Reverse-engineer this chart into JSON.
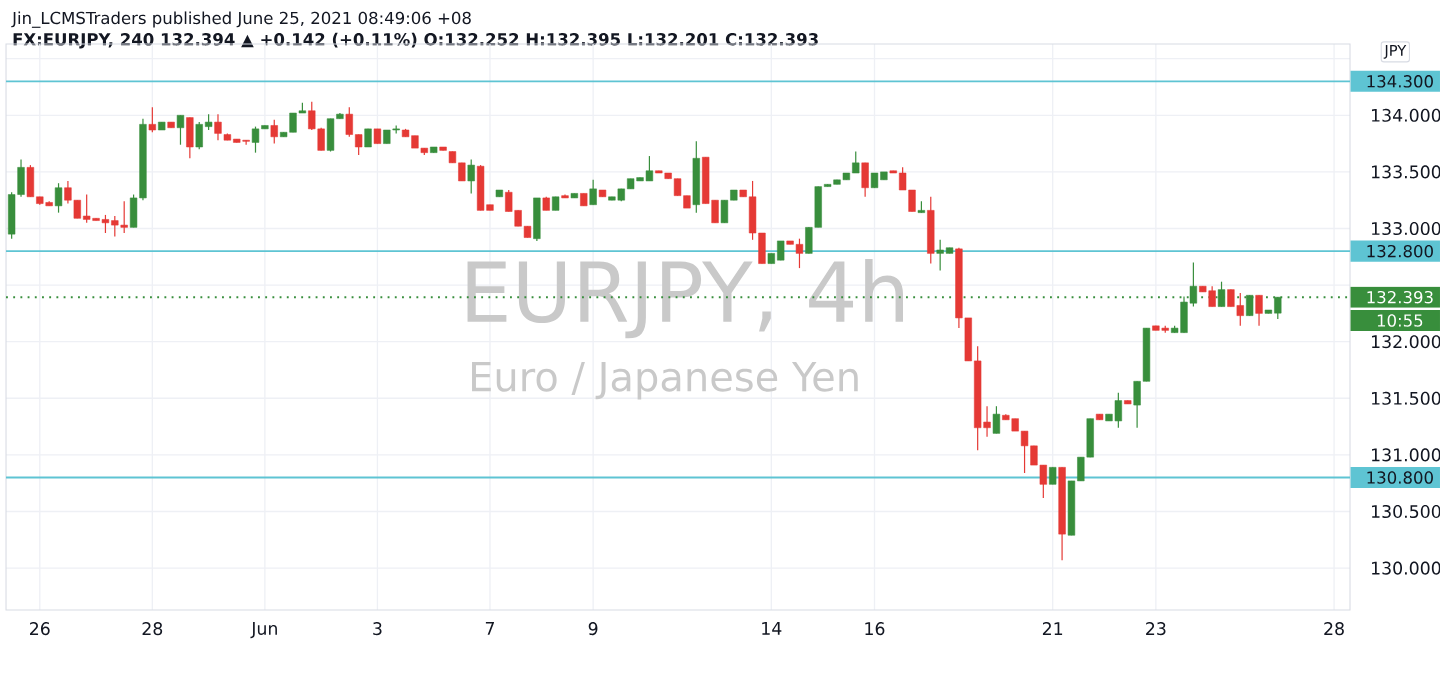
{
  "chart_data": {
    "type": "candlestick",
    "title": "EURJPY, 4h",
    "subtitle": "Euro / Japanese Yen",
    "annotations": [
      "Jin_LCMSTraders published June 25, 2021 08:49:06 +08",
      "FX:EURJPY, 240 132.394 ▲ +0.142 (+0.11%) O:132.252 H:132.395 L:132.201 C:132.393",
      "JPY",
      "10:55"
    ],
    "categories": [
      null,
      null,
      null,
      "26",
      null,
      null,
      null,
      null,
      null,
      null,
      null,
      null,
      null,
      null,
      null,
      "28",
      null,
      null,
      null,
      null,
      null,
      null,
      null,
      null,
      null,
      null,
      null,
      "Jun",
      null,
      null,
      null,
      null,
      null,
      null,
      null,
      null,
      null,
      null,
      null,
      "3",
      null,
      null,
      null,
      null,
      null,
      null,
      null,
      null,
      null,
      null,
      null,
      "7",
      null,
      null,
      null,
      null,
      null,
      null,
      null,
      null,
      null,
      null,
      "9",
      null,
      null,
      null,
      null,
      null,
      null,
      null,
      null,
      null,
      null,
      null,
      null,
      null,
      null,
      null,
      null,
      null,
      null,
      "14",
      null,
      null,
      null,
      null,
      null,
      null,
      null,
      null,
      null,
      null,
      "16",
      null,
      null,
      null,
      null,
      null,
      null,
      null,
      null,
      null,
      null,
      null,
      null,
      null,
      null,
      null,
      null,
      null,
      null,
      "21",
      null,
      null,
      null,
      null,
      null,
      null,
      null,
      null,
      null,
      null,
      "23",
      null,
      null,
      null,
      null,
      null,
      null,
      null,
      null,
      null,
      null,
      null,
      null,
      null,
      null,
      null,
      null,
      null,
      null,
      "28"
    ],
    "ohlc": [
      [
        132.95,
        133.32,
        132.91,
        133.3
      ],
      [
        133.3,
        133.61,
        133.28,
        133.54
      ],
      [
        133.54,
        133.56,
        133.28,
        133.28
      ],
      [
        133.28,
        133.28,
        133.21,
        133.22
      ],
      [
        133.23,
        133.24,
        133.2,
        133.2
      ],
      [
        133.2,
        133.4,
        133.14,
        133.36
      ],
      [
        133.36,
        133.42,
        133.22,
        133.25
      ],
      [
        133.25,
        133.25,
        133.09,
        133.09
      ],
      [
        133.11,
        133.3,
        133.05,
        133.08
      ],
      [
        133.09,
        133.09,
        133.07,
        133.07
      ],
      [
        133.08,
        133.12,
        132.96,
        133.05
      ],
      [
        133.07,
        133.11,
        132.93,
        133.03
      ],
      [
        133.03,
        133.24,
        132.96,
        133.01
      ],
      [
        133.01,
        133.3,
        133.01,
        133.27
      ],
      [
        133.27,
        133.97,
        133.25,
        133.92
      ],
      [
        133.92,
        134.07,
        133.85,
        133.87
      ],
      [
        133.87,
        133.94,
        133.87,
        133.94
      ],
      [
        133.94,
        133.94,
        133.89,
        133.89
      ],
      [
        133.89,
        134.0,
        133.74,
        134.0
      ],
      [
        133.98,
        133.98,
        133.62,
        133.72
      ],
      [
        133.72,
        133.94,
        133.7,
        133.92
      ],
      [
        133.9,
        134.01,
        133.87,
        133.94
      ],
      [
        133.94,
        134.01,
        133.78,
        133.84
      ],
      [
        133.83,
        133.84,
        133.78,
        133.78
      ],
      [
        133.79,
        133.79,
        133.76,
        133.76
      ],
      [
        133.78,
        133.78,
        133.74,
        133.77
      ],
      [
        133.76,
        133.9,
        133.67,
        133.88
      ],
      [
        133.88,
        133.91,
        133.88,
        133.91
      ],
      [
        133.91,
        133.96,
        133.75,
        133.81
      ],
      [
        133.81,
        133.85,
        133.81,
        133.85
      ],
      [
        133.85,
        134.02,
        133.85,
        134.02
      ],
      [
        134.02,
        134.11,
        134.02,
        134.04
      ],
      [
        134.04,
        134.12,
        133.87,
        133.88
      ],
      [
        133.88,
        133.89,
        133.69,
        133.69
      ],
      [
        133.69,
        133.97,
        133.68,
        133.97
      ],
      [
        133.97,
        134.02,
        133.97,
        134.01
      ],
      [
        134.01,
        134.07,
        133.81,
        133.83
      ],
      [
        133.83,
        133.83,
        133.65,
        133.72
      ],
      [
        133.72,
        133.88,
        133.72,
        133.88
      ],
      [
        133.88,
        133.88,
        133.75,
        133.75
      ],
      [
        133.75,
        133.87,
        133.75,
        133.87
      ],
      [
        133.87,
        133.91,
        133.84,
        133.88
      ],
      [
        133.87,
        133.88,
        133.81,
        133.81
      ],
      [
        133.82,
        133.82,
        133.71,
        133.71
      ],
      [
        133.71,
        133.71,
        133.65,
        133.67
      ],
      [
        133.67,
        133.72,
        133.67,
        133.72
      ],
      [
        133.72,
        133.72,
        133.69,
        133.69
      ],
      [
        133.68,
        133.68,
        133.58,
        133.58
      ],
      [
        133.58,
        133.58,
        133.42,
        133.42
      ],
      [
        133.42,
        133.61,
        133.31,
        133.56
      ],
      [
        133.55,
        133.56,
        133.16,
        133.16
      ],
      [
        133.21,
        133.21,
        133.16,
        133.16
      ],
      [
        133.28,
        133.34,
        133.28,
        133.34
      ],
      [
        133.32,
        133.34,
        133.15,
        133.15
      ],
      [
        133.16,
        133.16,
        133.02,
        133.02
      ],
      [
        133.02,
        133.02,
        132.92,
        132.92
      ],
      [
        132.91,
        133.27,
        132.89,
        133.27
      ],
      [
        133.27,
        133.28,
        133.16,
        133.16
      ],
      [
        133.16,
        133.28,
        133.16,
        133.28
      ],
      [
        133.29,
        133.3,
        133.27,
        133.27
      ],
      [
        133.27,
        133.31,
        133.27,
        133.31
      ],
      [
        133.31,
        133.31,
        133.2,
        133.2
      ],
      [
        133.21,
        133.43,
        133.21,
        133.35
      ],
      [
        133.34,
        133.34,
        133.28,
        133.28
      ],
      [
        133.25,
        133.28,
        133.25,
        133.28
      ],
      [
        133.25,
        133.35,
        133.24,
        133.35
      ],
      [
        133.35,
        133.44,
        133.35,
        133.44
      ],
      [
        133.42,
        133.45,
        133.42,
        133.45
      ],
      [
        133.42,
        133.64,
        133.42,
        133.51
      ],
      [
        133.51,
        133.51,
        133.49,
        133.49
      ],
      [
        133.49,
        133.49,
        133.44,
        133.44
      ],
      [
        133.44,
        133.44,
        133.29,
        133.29
      ],
      [
        133.29,
        133.29,
        133.18,
        133.18
      ],
      [
        133.21,
        133.77,
        133.14,
        133.62
      ],
      [
        133.63,
        133.63,
        133.22,
        133.22
      ],
      [
        133.25,
        133.25,
        133.05,
        133.05
      ],
      [
        133.05,
        133.25,
        133.05,
        133.25
      ],
      [
        133.25,
        133.34,
        133.25,
        133.34
      ],
      [
        133.34,
        133.34,
        133.28,
        133.28
      ],
      [
        133.28,
        133.42,
        132.9,
        132.96
      ],
      [
        132.96,
        132.96,
        132.69,
        132.69
      ],
      [
        132.69,
        132.78,
        132.69,
        132.78
      ],
      [
        132.72,
        132.89,
        132.72,
        132.89
      ],
      [
        132.89,
        132.89,
        132.86,
        132.86
      ],
      [
        132.86,
        132.91,
        132.65,
        132.78
      ],
      [
        132.78,
        133.01,
        132.78,
        133.01
      ],
      [
        133.01,
        133.37,
        133.01,
        133.37
      ],
      [
        133.37,
        133.39,
        133.37,
        133.39
      ],
      [
        133.39,
        133.43,
        133.39,
        133.43
      ],
      [
        133.43,
        133.49,
        133.43,
        133.49
      ],
      [
        133.49,
        133.68,
        133.49,
        133.58
      ],
      [
        133.58,
        133.58,
        133.28,
        133.36
      ],
      [
        133.36,
        133.49,
        133.36,
        133.49
      ],
      [
        133.43,
        133.5,
        133.43,
        133.5
      ],
      [
        133.51,
        133.51,
        133.49,
        133.49
      ],
      [
        133.49,
        133.54,
        133.34,
        133.34
      ],
      [
        133.34,
        133.34,
        133.15,
        133.15
      ],
      [
        133.14,
        133.24,
        133.14,
        133.16
      ],
      [
        133.16,
        133.28,
        132.69,
        132.78
      ],
      [
        132.78,
        132.9,
        132.63,
        132.81
      ],
      [
        132.78,
        132.83,
        132.78,
        132.83
      ],
      [
        132.82,
        132.83,
        132.12,
        132.21
      ],
      [
        132.21,
        132.21,
        131.83,
        131.83
      ],
      [
        131.83,
        131.96,
        131.04,
        131.24
      ],
      [
        131.29,
        131.43,
        131.16,
        131.24
      ],
      [
        131.19,
        131.43,
        131.19,
        131.36
      ],
      [
        131.35,
        131.36,
        131.31,
        131.31
      ],
      [
        131.32,
        131.32,
        131.21,
        131.21
      ],
      [
        131.21,
        131.21,
        130.84,
        131.08
      ],
      [
        131.08,
        131.08,
        130.91,
        130.91
      ],
      [
        130.91,
        130.91,
        130.62,
        130.74
      ],
      [
        130.74,
        130.89,
        130.74,
        130.89
      ],
      [
        130.89,
        130.89,
        130.07,
        130.3
      ],
      [
        130.29,
        130.77,
        130.29,
        130.77
      ],
      [
        130.77,
        130.98,
        130.77,
        130.98
      ],
      [
        130.98,
        131.32,
        130.98,
        131.32
      ],
      [
        131.36,
        131.36,
        131.31,
        131.31
      ],
      [
        131.3,
        131.36,
        131.3,
        131.36
      ],
      [
        131.3,
        131.55,
        131.24,
        131.48
      ],
      [
        131.48,
        131.48,
        131.45,
        131.45
      ],
      [
        131.44,
        131.65,
        131.24,
        131.65
      ],
      [
        131.65,
        132.12,
        131.65,
        132.12
      ],
      [
        132.14,
        132.14,
        132.1,
        132.1
      ],
      [
        132.12,
        132.14,
        132.08,
        132.1
      ],
      [
        132.08,
        132.14,
        132.08,
        132.12
      ],
      [
        132.08,
        132.4,
        132.08,
        132.35
      ],
      [
        132.34,
        132.7,
        132.31,
        132.49
      ],
      [
        132.49,
        132.49,
        132.44,
        132.44
      ],
      [
        132.45,
        132.49,
        132.31,
        132.31
      ],
      [
        132.31,
        132.53,
        132.31,
        132.46
      ],
      [
        132.46,
        132.46,
        132.31,
        132.31
      ],
      [
        132.32,
        132.43,
        132.14,
        132.23
      ],
      [
        132.23,
        132.41,
        132.23,
        132.41
      ],
      [
        132.41,
        132.41,
        132.14,
        132.25
      ],
      [
        132.25,
        132.28,
        132.25,
        132.28
      ],
      [
        132.252,
        132.395,
        132.201,
        132.393
      ],
      null,
      null,
      null,
      null,
      null,
      null
    ],
    "ylim": [
      129.63,
      134.63
    ],
    "yticks": [
      {
        "value": 130,
        "label": "130.000"
      },
      {
        "value": 130.5,
        "label": "130.500"
      },
      {
        "value": 131,
        "label": "131.000"
      },
      {
        "value": 131.5,
        "label": "131.500"
      },
      {
        "value": 132,
        "label": "132.000"
      },
      {
        "value": 132.5,
        "label": null
      },
      {
        "value": 133,
        "label": "133.000"
      },
      {
        "value": 133.5,
        "label": "133.500"
      },
      {
        "value": 134,
        "label": "134.000"
      },
      {
        "value": 134.5,
        "label": null
      }
    ],
    "ref_lines": [
      {
        "axis": "y",
        "value": 134.3,
        "label": "134.300",
        "color": "#5ec4d3"
      },
      {
        "axis": "y",
        "value": 132.8,
        "label": "132.800",
        "color": "#5ec4d3"
      },
      {
        "axis": "y",
        "value": 130.8,
        "label": "130.800",
        "color": "#5ec4d3"
      },
      {
        "axis": "y",
        "value": 132.393,
        "label": "132.393",
        "color": "#388e3c",
        "line_style": "dotted"
      }
    ],
    "grid": true
  }
}
